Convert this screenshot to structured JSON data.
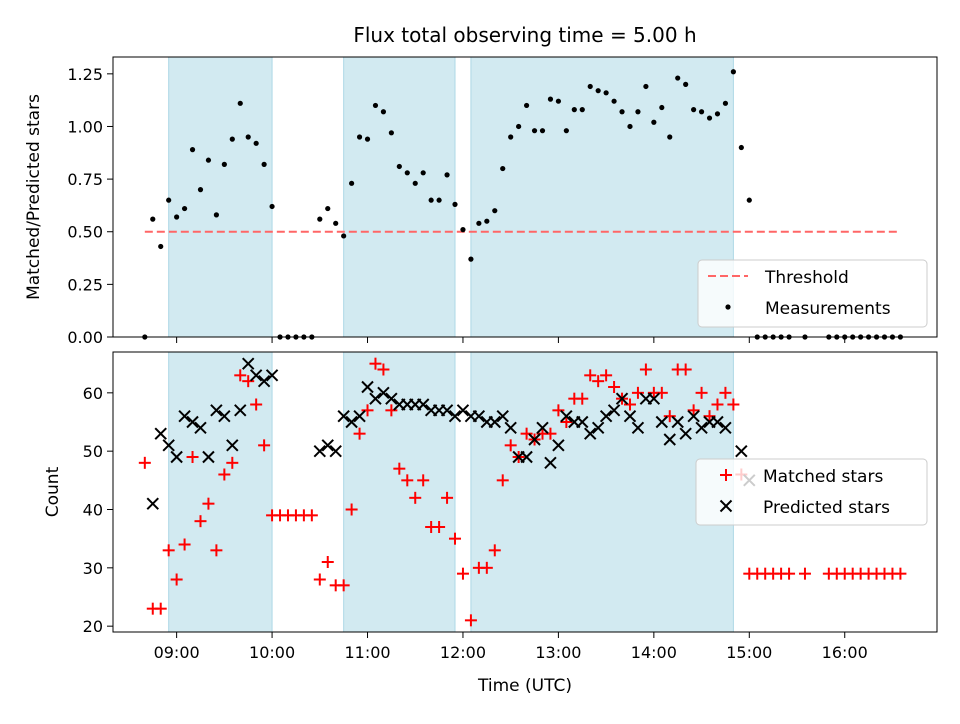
{
  "title": "Flux total observing time = 5.00 h",
  "colors": {
    "band": "#add8e6",
    "threshold": "#ff6666",
    "measurement": "#000000",
    "matched": "#ff0000",
    "predicted": "#000000"
  },
  "chart_data": [
    {
      "type": "scatter",
      "ylabel": "Matched/Predicted stars",
      "xlim": [
        "08:20",
        "16:58"
      ],
      "ylim": [
        0,
        1.33
      ],
      "yticks": [
        "0.00",
        "0.25",
        "0.50",
        "0.75",
        "1.00",
        "1.25"
      ],
      "observing_windows": [
        [
          "08:55",
          "10:00"
        ],
        [
          "10:45",
          "11:55"
        ],
        [
          "12:05",
          "14:50"
        ]
      ],
      "threshold": {
        "name": "Threshold",
        "value": 0.5,
        "x_range": [
          "08:40",
          "16:35"
        ]
      },
      "legend": [
        "Threshold",
        "Measurements"
      ],
      "legend_position": "lower right",
      "series": [
        {
          "name": "Measurements",
          "points": [
            [
              "08:40",
              0.0
            ],
            [
              "08:45",
              0.56
            ],
            [
              "08:50",
              0.43
            ],
            [
              "08:55",
              0.65
            ],
            [
              "09:00",
              0.57
            ],
            [
              "09:05",
              0.61
            ],
            [
              "09:10",
              0.89
            ],
            [
              "09:15",
              0.7
            ],
            [
              "09:20",
              0.84
            ],
            [
              "09:25",
              0.58
            ],
            [
              "09:30",
              0.82
            ],
            [
              "09:35",
              0.94
            ],
            [
              "09:40",
              1.11
            ],
            [
              "09:45",
              0.95
            ],
            [
              "09:50",
              0.92
            ],
            [
              "09:55",
              0.82
            ],
            [
              "10:00",
              0.62
            ],
            [
              "10:05",
              0.0
            ],
            [
              "10:10",
              0.0
            ],
            [
              "10:15",
              0.0
            ],
            [
              "10:20",
              0.0
            ],
            [
              "10:25",
              0.0
            ],
            [
              "10:30",
              0.56
            ],
            [
              "10:35",
              0.61
            ],
            [
              "10:40",
              0.54
            ],
            [
              "10:45",
              0.48
            ],
            [
              "10:50",
              0.73
            ],
            [
              "10:55",
              0.95
            ],
            [
              "11:00",
              0.94
            ],
            [
              "11:05",
              1.1
            ],
            [
              "11:10",
              1.07
            ],
            [
              "11:15",
              0.97
            ],
            [
              "11:20",
              0.81
            ],
            [
              "11:25",
              0.78
            ],
            [
              "11:30",
              0.73
            ],
            [
              "11:35",
              0.78
            ],
            [
              "11:40",
              0.65
            ],
            [
              "11:45",
              0.65
            ],
            [
              "11:50",
              0.77
            ],
            [
              "11:55",
              0.63
            ],
            [
              "12:00",
              0.51
            ],
            [
              "12:05",
              0.37
            ],
            [
              "12:10",
              0.54
            ],
            [
              "12:15",
              0.55
            ],
            [
              "12:20",
              0.6
            ],
            [
              "12:25",
              0.8
            ],
            [
              "12:30",
              0.95
            ],
            [
              "12:35",
              1.0
            ],
            [
              "12:40",
              1.1
            ],
            [
              "12:45",
              0.98
            ],
            [
              "12:50",
              0.98
            ],
            [
              "12:55",
              1.13
            ],
            [
              "13:00",
              1.12
            ],
            [
              "13:05",
              0.98
            ],
            [
              "13:10",
              1.08
            ],
            [
              "13:15",
              1.08
            ],
            [
              "13:20",
              1.19
            ],
            [
              "13:25",
              1.17
            ],
            [
              "13:30",
              1.16
            ],
            [
              "13:35",
              1.12
            ],
            [
              "13:40",
              1.07
            ],
            [
              "13:45",
              1.0
            ],
            [
              "13:50",
              1.07
            ],
            [
              "13:55",
              1.19
            ],
            [
              "14:00",
              1.02
            ],
            [
              "14:05",
              1.09
            ],
            [
              "14:10",
              0.95
            ],
            [
              "14:15",
              1.23
            ],
            [
              "14:20",
              1.2
            ],
            [
              "14:25",
              1.08
            ],
            [
              "14:30",
              1.07
            ],
            [
              "14:35",
              1.04
            ],
            [
              "14:40",
              1.06
            ],
            [
              "14:45",
              1.11
            ],
            [
              "14:50",
              1.26
            ],
            [
              "14:55",
              0.9
            ],
            [
              "15:00",
              0.65
            ],
            [
              "15:05",
              0.0
            ],
            [
              "15:10",
              0.0
            ],
            [
              "15:15",
              0.0
            ],
            [
              "15:20",
              0.0
            ],
            [
              "15:25",
              0.0
            ],
            [
              "15:35",
              0.0
            ],
            [
              "15:50",
              0.0
            ],
            [
              "15:55",
              0.0
            ],
            [
              "16:00",
              0.0
            ],
            [
              "16:05",
              0.0
            ],
            [
              "16:10",
              0.0
            ],
            [
              "16:15",
              0.0
            ],
            [
              "16:20",
              0.0
            ],
            [
              "16:25",
              0.0
            ],
            [
              "16:30",
              0.0
            ],
            [
              "16:35",
              0.0
            ]
          ]
        }
      ]
    },
    {
      "type": "scatter",
      "xlabel": "Time (UTC)",
      "ylabel": "Count",
      "xlim": [
        "08:20",
        "16:58"
      ],
      "ylim": [
        19,
        67
      ],
      "yticks": [
        "20",
        "30",
        "40",
        "50",
        "60"
      ],
      "xticks": [
        "09:00",
        "10:00",
        "11:00",
        "12:00",
        "13:00",
        "14:00",
        "15:00",
        "16:00"
      ],
      "observing_windows": [
        [
          "08:55",
          "10:00"
        ],
        [
          "10:45",
          "11:55"
        ],
        [
          "12:05",
          "14:50"
        ]
      ],
      "legend": [
        "Matched stars",
        "Predicted stars"
      ],
      "legend_position": "center right",
      "series": [
        {
          "name": "Matched stars",
          "points": [
            [
              "08:40",
              48
            ],
            [
              "08:45",
              23
            ],
            [
              "08:50",
              23
            ],
            [
              "08:55",
              33
            ],
            [
              "09:00",
              28
            ],
            [
              "09:05",
              34
            ],
            [
              "09:10",
              49
            ],
            [
              "09:15",
              38
            ],
            [
              "09:20",
              41
            ],
            [
              "09:25",
              33
            ],
            [
              "09:30",
              46
            ],
            [
              "09:35",
              48
            ],
            [
              "09:40",
              63
            ],
            [
              "09:45",
              62
            ],
            [
              "09:50",
              58
            ],
            [
              "09:55",
              51
            ],
            [
              "10:00",
              39
            ],
            [
              "10:05",
              39
            ],
            [
              "10:10",
              39
            ],
            [
              "10:15",
              39
            ],
            [
              "10:20",
              39
            ],
            [
              "10:25",
              39
            ],
            [
              "10:30",
              28
            ],
            [
              "10:35",
              31
            ],
            [
              "10:40",
              27
            ],
            [
              "10:45",
              27
            ],
            [
              "10:50",
              40
            ],
            [
              "10:55",
              53
            ],
            [
              "11:00",
              57
            ],
            [
              "11:05",
              65
            ],
            [
              "11:10",
              64
            ],
            [
              "11:15",
              57
            ],
            [
              "11:20",
              47
            ],
            [
              "11:25",
              45
            ],
            [
              "11:30",
              42
            ],
            [
              "11:35",
              45
            ],
            [
              "11:40",
              37
            ],
            [
              "11:45",
              37
            ],
            [
              "11:50",
              42
            ],
            [
              "11:55",
              35
            ],
            [
              "12:00",
              29
            ],
            [
              "12:05",
              21
            ],
            [
              "12:10",
              30
            ],
            [
              "12:15",
              30
            ],
            [
              "12:20",
              33
            ],
            [
              "12:25",
              45
            ],
            [
              "12:30",
              51
            ],
            [
              "12:35",
              49
            ],
            [
              "12:40",
              53
            ],
            [
              "12:45",
              52
            ],
            [
              "12:50",
              53
            ],
            [
              "12:55",
              53
            ],
            [
              "13:00",
              57
            ],
            [
              "13:05",
              55
            ],
            [
              "13:10",
              59
            ],
            [
              "13:15",
              59
            ],
            [
              "13:20",
              63
            ],
            [
              "13:25",
              62
            ],
            [
              "13:30",
              63
            ],
            [
              "13:35",
              61
            ],
            [
              "13:40",
              59
            ],
            [
              "13:45",
              58
            ],
            [
              "13:50",
              60
            ],
            [
              "13:55",
              64
            ],
            [
              "14:00",
              60
            ],
            [
              "14:05",
              60
            ],
            [
              "14:10",
              56
            ],
            [
              "14:15",
              64
            ],
            [
              "14:20",
              64
            ],
            [
              "14:25",
              57
            ],
            [
              "14:30",
              60
            ],
            [
              "14:35",
              56
            ],
            [
              "14:40",
              58
            ],
            [
              "14:45",
              60
            ],
            [
              "14:50",
              58
            ],
            [
              "14:55",
              46
            ],
            [
              "15:00",
              29
            ],
            [
              "15:05",
              29
            ],
            [
              "15:10",
              29
            ],
            [
              "15:15",
              29
            ],
            [
              "15:20",
              29
            ],
            [
              "15:25",
              29
            ],
            [
              "15:35",
              29
            ],
            [
              "15:50",
              29
            ],
            [
              "15:55",
              29
            ],
            [
              "16:00",
              29
            ],
            [
              "16:05",
              29
            ],
            [
              "16:10",
              29
            ],
            [
              "16:15",
              29
            ],
            [
              "16:20",
              29
            ],
            [
              "16:25",
              29
            ],
            [
              "16:30",
              29
            ],
            [
              "16:35",
              29
            ]
          ]
        },
        {
          "name": "Predicted stars",
          "points": [
            [
              "08:45",
              41
            ],
            [
              "08:50",
              53
            ],
            [
              "08:55",
              51
            ],
            [
              "09:00",
              49
            ],
            [
              "09:05",
              56
            ],
            [
              "09:10",
              55
            ],
            [
              "09:15",
              54
            ],
            [
              "09:20",
              49
            ],
            [
              "09:25",
              57
            ],
            [
              "09:30",
              56
            ],
            [
              "09:35",
              51
            ],
            [
              "09:40",
              57
            ],
            [
              "09:45",
              65
            ],
            [
              "09:50",
              63
            ],
            [
              "09:55",
              62
            ],
            [
              "10:00",
              63
            ],
            [
              "10:30",
              50
            ],
            [
              "10:35",
              51
            ],
            [
              "10:40",
              50
            ],
            [
              "10:45",
              56
            ],
            [
              "10:50",
              55
            ],
            [
              "10:55",
              56
            ],
            [
              "11:00",
              61
            ],
            [
              "11:05",
              59
            ],
            [
              "11:10",
              60
            ],
            [
              "11:15",
              59
            ],
            [
              "11:20",
              58
            ],
            [
              "11:25",
              58
            ],
            [
              "11:30",
              58
            ],
            [
              "11:35",
              58
            ],
            [
              "11:40",
              57
            ],
            [
              "11:45",
              57
            ],
            [
              "11:50",
              57
            ],
            [
              "11:55",
              56
            ],
            [
              "12:00",
              57
            ],
            [
              "12:05",
              56
            ],
            [
              "12:10",
              56
            ],
            [
              "12:15",
              55
            ],
            [
              "12:20",
              55
            ],
            [
              "12:25",
              56
            ],
            [
              "12:30",
              54
            ],
            [
              "12:35",
              49
            ],
            [
              "12:40",
              49
            ],
            [
              "12:45",
              52
            ],
            [
              "12:50",
              54
            ],
            [
              "12:55",
              48
            ],
            [
              "13:00",
              51
            ],
            [
              "13:05",
              56
            ],
            [
              "13:10",
              55
            ],
            [
              "13:15",
              55
            ],
            [
              "13:20",
              53
            ],
            [
              "13:25",
              54
            ],
            [
              "13:30",
              56
            ],
            [
              "13:35",
              57
            ],
            [
              "13:40",
              59
            ],
            [
              "13:45",
              56
            ],
            [
              "13:50",
              54
            ],
            [
              "13:55",
              59
            ],
            [
              "14:00",
              59
            ],
            [
              "14:05",
              55
            ],
            [
              "14:10",
              52
            ],
            [
              "14:15",
              55
            ],
            [
              "14:20",
              53
            ],
            [
              "14:25",
              56
            ],
            [
              "14:30",
              54
            ],
            [
              "14:35",
              55
            ],
            [
              "14:40",
              55
            ],
            [
              "14:45",
              54
            ],
            [
              "14:55",
              50
            ],
            [
              "15:00",
              45
            ]
          ]
        }
      ]
    }
  ]
}
